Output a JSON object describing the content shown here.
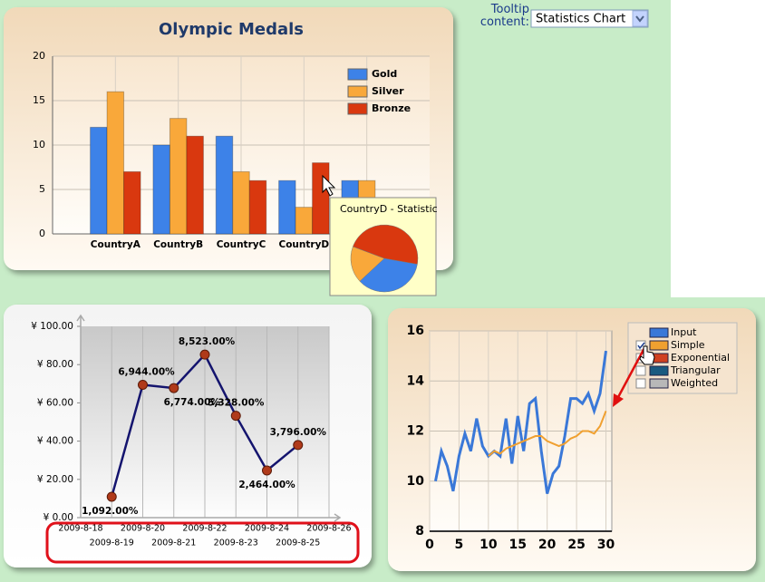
{
  "ui": {
    "tooltip_label": "Tooltip content:",
    "tooltip_select": "Statistics Chart"
  },
  "chart_data": [
    {
      "type": "bar",
      "title": "Olympic Medals",
      "categories": [
        "CountryA",
        "CountryB",
        "CountryC",
        "CountryD",
        null
      ],
      "series": [
        {
          "name": "Gold",
          "color": "#3d82e8",
          "values": [
            12,
            10,
            11,
            6,
            6
          ]
        },
        {
          "name": "Silver",
          "color": "#f9a83a",
          "values": [
            16,
            13,
            7,
            3,
            6
          ]
        },
        {
          "name": "Bronze",
          "color": "#d9380f",
          "values": [
            7,
            11,
            6,
            8,
            null
          ]
        }
      ],
      "ylim": [
        0,
        20
      ],
      "yticks": [
        0,
        5,
        10,
        15,
        20
      ],
      "grid": true
    },
    {
      "type": "pie",
      "title": "CountryD - Statistic",
      "values": [
        6,
        3,
        8
      ],
      "colors": [
        "#3d82e8",
        "#f9a83a",
        "#d9380f"
      ]
    },
    {
      "type": "line",
      "categories": [
        "2009-8-18",
        "2009-8-19",
        "2009-8-20",
        "2009-8-21",
        "2009-8-22",
        "2009-8-23",
        "2009-8-24",
        "2009-8-25",
        "2009-8-26"
      ],
      "values": [
        null,
        10.92,
        69.44,
        67.74,
        85.23,
        53.28,
        24.64,
        37.96,
        null
      ],
      "value_labels": [
        null,
        "1,092.00%",
        "6,944.00%",
        "6,774.00%",
        "8,523.00%",
        "5,328.00%",
        "2,464.00%",
        "3,796.00%",
        null
      ],
      "color": "#14146e",
      "marker_color": "#b03a1a",
      "ylim": [
        0,
        100
      ],
      "yticks": [
        {
          "value": 0,
          "label": "¥ 0.00"
        },
        {
          "value": 20,
          "label": "¥ 20.00"
        },
        {
          "value": 40,
          "label": "¥ 40.00"
        },
        {
          "value": 60,
          "label": "¥ 60.00"
        },
        {
          "value": 80,
          "label": "¥ 80.00"
        },
        {
          "value": 100,
          "label": "¥ 100.00"
        }
      ],
      "grid": true
    },
    {
      "type": "line",
      "x": [
        1,
        2,
        3,
        4,
        5,
        6,
        7,
        8,
        9,
        10,
        11,
        12,
        13,
        14,
        15,
        16,
        17,
        18,
        19,
        20,
        21,
        22,
        23,
        24,
        25,
        26,
        27,
        28,
        29,
        30
      ],
      "series": [
        {
          "name": "Input",
          "color": "#3a78d8",
          "values": [
            10.0,
            11.2,
            10.6,
            9.6,
            11.0,
            11.9,
            11.2,
            12.5,
            11.4,
            11.0,
            11.2,
            11.0,
            12.5,
            10.7,
            12.6,
            11.2,
            13.1,
            13.3,
            11.2,
            9.5,
            10.3,
            10.6,
            11.8,
            13.3,
            13.3,
            13.1,
            13.5,
            12.8,
            13.5,
            15.2
          ]
        },
        {
          "name": "Simple",
          "color": "#f0a030",
          "checked": true,
          "values": [
            null,
            null,
            null,
            null,
            null,
            null,
            null,
            null,
            null,
            11.0,
            11.2,
            11.1,
            11.3,
            11.4,
            11.5,
            11.6,
            11.7,
            11.8,
            11.8,
            11.6,
            11.5,
            11.4,
            11.5,
            11.7,
            11.8,
            12.0,
            12.0,
            11.9,
            12.2,
            12.8
          ]
        },
        {
          "name": "Exponential",
          "color": "#d04020",
          "checked": false,
          "values": [
            null,
            null,
            null,
            null,
            null,
            null,
            null,
            null,
            null,
            null,
            null,
            null,
            null,
            null,
            null,
            null,
            null,
            null,
            null,
            null,
            null,
            null,
            null,
            null,
            null,
            null,
            null,
            null,
            null,
            null
          ]
        },
        {
          "name": "Triangular",
          "color": "#1a5a80",
          "checked": false,
          "values": [
            null,
            null,
            null,
            null,
            null,
            null,
            null,
            null,
            null,
            null,
            null,
            null,
            null,
            null,
            null,
            null,
            null,
            null,
            null,
            null,
            null,
            null,
            null,
            null,
            null,
            null,
            null,
            null,
            null,
            null
          ]
        },
        {
          "name": "Weighted",
          "color": "#b8b8b8",
          "checked": false,
          "values": [
            null,
            null,
            null,
            null,
            null,
            null,
            null,
            null,
            null,
            null,
            null,
            null,
            null,
            null,
            null,
            null,
            null,
            null,
            null,
            null,
            null,
            null,
            null,
            null,
            null,
            null,
            null,
            null,
            null,
            null
          ]
        }
      ],
      "xlim": [
        0,
        31
      ],
      "xticks": [
        0,
        5,
        10,
        15,
        20,
        25,
        30
      ],
      "ylim": [
        8,
        16
      ],
      "yticks": [
        8,
        10,
        12,
        14,
        16
      ],
      "grid": true
    }
  ]
}
